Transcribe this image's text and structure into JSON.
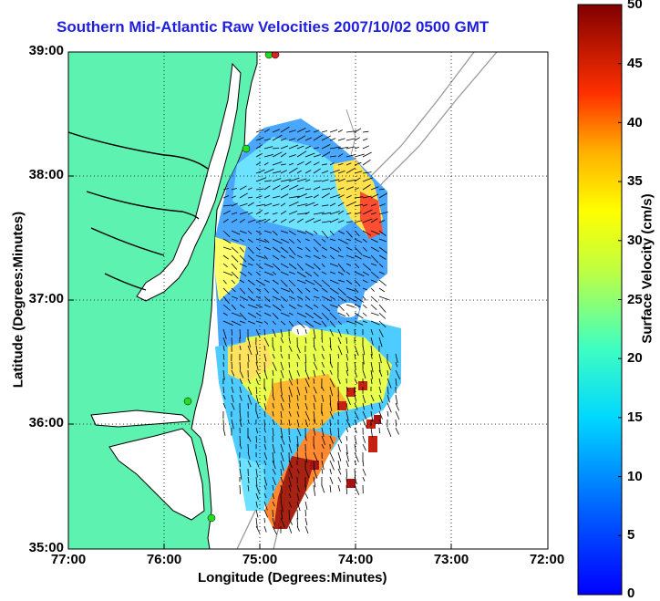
{
  "title": "Southern Mid-Atlantic Raw Velocities 2007/10/02 0500 GMT",
  "axes": {
    "xlabel": "Longitude (Degrees:Minutes)",
    "ylabel": "Latitude (Degrees:Minutes)",
    "x_ticks": [
      "77:00",
      "76:00",
      "75:00",
      "74:00",
      "73:00",
      "72:00"
    ],
    "y_ticks": [
      "39:00",
      "38:00",
      "37:00",
      "36:00",
      "35:00"
    ],
    "grid": "dotted"
  },
  "colorbar": {
    "label": "Surface Velocity (cm/s)",
    "ticks": [
      "50",
      "45",
      "40",
      "35",
      "30",
      "25",
      "20",
      "15",
      "10",
      "5",
      "0"
    ],
    "range": [
      0,
      50
    ],
    "colormap": "jet"
  },
  "colors": {
    "title": "#1f1fe0",
    "land": "#5ef2b0",
    "ocean": "#ffffff",
    "coastline": "#000000",
    "bathymetry": "#9a9a9a",
    "station_marker": "#22dd22",
    "station_marker_alt": "#e02020"
  },
  "chart_data": {
    "type": "heatmap",
    "xlim": [
      "77:00 W",
      "72:00 W"
    ],
    "ylim": [
      "35:00 N",
      "39:00 N"
    ],
    "value_range": [
      0,
      50
    ],
    "units": "cm/s",
    "notes": "Gridded surface current field with velocity vectors; highest speeds (45-50 cm/s) near 35:30N 74:40W and 37:40N 73:45W."
  }
}
